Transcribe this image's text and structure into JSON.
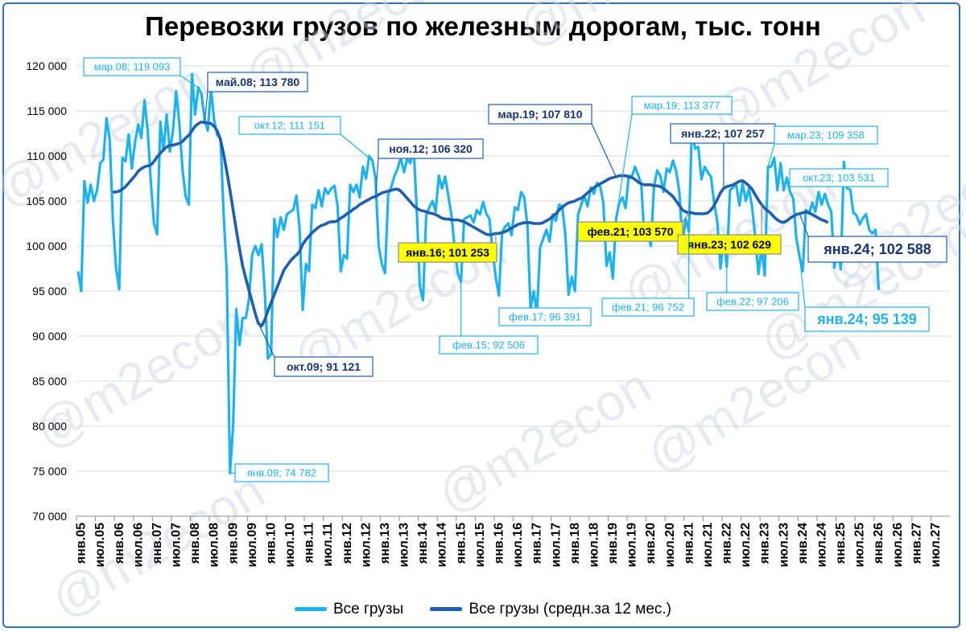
{
  "chart_data": {
    "type": "line",
    "title": "Перевозки грузов по железным дорогам, тыс. тонн",
    "watermark": "@m2econ",
    "colors": {
      "monthly": "#1fb2ec",
      "avg": "#1f5fad",
      "frame": "#2f6fbf",
      "highlight": "#ffff00"
    },
    "ylim": [
      70000,
      120000
    ],
    "yticks": [
      "70 000",
      "75 000",
      "80 000",
      "85 000",
      "90 000",
      "95 000",
      "100 000",
      "105 000",
      "110 000",
      "115 000",
      "120 000"
    ],
    "xticks": [
      "янв.05",
      "июл.05",
      "янв.06",
      "июл.06",
      "янв.07",
      "июл.07",
      "янв.08",
      "июл.08",
      "янв.09",
      "июл.09",
      "янв.10",
      "июл.10",
      "янв.11",
      "июл.11",
      "янв.12",
      "июл.12",
      "янв.13",
      "июл.13",
      "янв.14",
      "июл.14",
      "янв.15",
      "июл.15",
      "янв.16",
      "июл.16",
      "янв.17",
      "июл.17",
      "янв.18",
      "июл.18",
      "янв.19",
      "июл.19",
      "янв.20",
      "июл.20",
      "янв.21",
      "июл.21",
      "янв.22",
      "июл.22",
      "янв.23",
      "июл.23",
      "янв.24",
      "июл.24",
      "янв.25",
      "июл.25",
      "янв.26",
      "июл.26",
      "янв.27",
      "июл.27"
    ],
    "x_start": "янв.05",
    "grid": true,
    "legend_position": "bottom",
    "series": [
      {
        "name": "Все грузы",
        "values": [
          97200,
          95000,
          107200,
          104800,
          106800,
          105000,
          106200,
          109200,
          109600,
          114200,
          111800,
          103000,
          97600,
          95200,
          109800,
          109400,
          112400,
          108600,
          111500,
          113500,
          112000,
          116200,
          112800,
          107100,
          102500,
          101300,
          113800,
          110600,
          114600,
          110500,
          112800,
          117200,
          113600,
          108500,
          105500,
          104600,
          119093,
          114600,
          117600,
          116900,
          114000,
          112800,
          117500,
          114000,
          112300,
          112000,
          103600,
          97000,
          74782,
          80000,
          93000,
          89000,
          92000,
          92000,
          94000,
          99000,
          100000,
          99000,
          100200,
          95000,
          87500,
          88000,
          103000,
          101000,
          103200,
          101800,
          103500,
          103800,
          104000,
          105600,
          102000,
          92900,
          98000,
          97200,
          104600,
          104200,
          106200,
          104400,
          106400,
          105800,
          106400,
          106700,
          104500,
          97200,
          99000,
          98600,
          106800,
          106000,
          106800,
          105400,
          108800,
          107500,
          110000,
          109500,
          107500,
          100000,
          98000,
          97000,
          105700,
          106600,
          107800,
          108600,
          109800,
          108200,
          109700,
          109200,
          111151,
          104300,
          95500,
          94000,
          103400,
          104300,
          105000,
          103800,
          107800,
          106400,
          107700,
          105600,
          103400,
          99800,
          97000,
          96000,
          103000,
          103200,
          103400,
          102600,
          104000,
          103500,
          104900,
          103600,
          103000,
          99500,
          96500,
          94500,
          101500,
          102200,
          102500,
          101200,
          104300,
          104000,
          106000,
          105400,
          102200,
          93000,
          95000,
          92506,
          99800,
          100800,
          101800,
          100500,
          103500,
          102800,
          104600,
          104400,
          101200,
          94600,
          96600,
          95000,
          103500,
          104600,
          105600,
          104400,
          106500,
          105800,
          107000,
          106600,
          104800,
          97800,
          99300,
          96391,
          103000,
          104800,
          105400,
          104200,
          107800,
          107700,
          108800,
          107900,
          106800,
          100600,
          101600,
          100000,
          106600,
          108400,
          107810,
          106000,
          108600,
          108200,
          109500,
          108300,
          106000,
          100400,
          103000,
          101600,
          113377,
          110800,
          111000,
          107400,
          108800,
          108200,
          107700,
          104800,
          102700,
          97500,
          101000,
          97700,
          106200,
          106500,
          106800,
          104500,
          107000,
          105000,
          106400,
          104300,
          101000,
          96900,
          99800,
          96752,
          108800,
          108800,
          109800,
          106200,
          109200,
          106200,
          107600,
          106000,
          105300,
          100800,
          98800,
          97206,
          104000,
          103600,
          104800,
          103800,
          106000,
          104600,
          105800,
          104600,
          103800,
          97600,
          100500,
          97400,
          109358,
          106400,
          106300,
          103700,
          103400,
          102400,
          103100,
          103531,
          101800,
          101400,
          101800,
          95139
        ]
      },
      {
        "name": "Все грузы (средн.за 12 мес.)",
        "start_index": 11,
        "values": [
          106000,
          106000,
          106100,
          106300,
          106600,
          107000,
          107400,
          107800,
          108300,
          108600,
          108800,
          108900,
          109000,
          109400,
          109900,
          110300,
          110700,
          111000,
          111200,
          111200,
          111300,
          111400,
          111600,
          112000,
          112300,
          112800,
          113300,
          113600,
          113780,
          113700,
          113700,
          113600,
          113300,
          112800,
          111800,
          110200,
          108300,
          106200,
          104000,
          101800,
          99700,
          97800,
          96400,
          95100,
          93800,
          92500,
          91400,
          91121,
          91800,
          92800,
          93700,
          94600,
          95500,
          96400,
          97300,
          97800,
          98300,
          98700,
          99000,
          99400,
          100200,
          100700,
          101100,
          101500,
          101800,
          102100,
          102300,
          102400,
          102600,
          102700,
          102700,
          102800,
          103100,
          103300,
          103600,
          103800,
          104100,
          104300,
          104600,
          104800,
          105000,
          105200,
          105400,
          105500,
          105700,
          105900,
          106000,
          106100,
          106200,
          106300,
          106320,
          106100,
          105700,
          105300,
          104900,
          104500,
          104200,
          104000,
          103900,
          103800,
          103700,
          103600,
          103500,
          103300,
          103100,
          103000,
          103000,
          102900,
          102900,
          102900,
          102800,
          102700,
          102500,
          102300,
          102100,
          101900,
          101700,
          101500,
          101300,
          101253,
          101300,
          101400,
          101400,
          101500,
          101600,
          101800,
          102000,
          102200,
          102400,
          102500,
          102600,
          102600,
          102600,
          102500,
          102500,
          102500,
          102600,
          102800,
          103000,
          103300,
          103600,
          104000,
          104300,
          104600,
          104800,
          104900,
          105000,
          105200,
          105300,
          105600,
          105900,
          106200,
          106500,
          106700,
          106900,
          107100,
          107300,
          107500,
          107600,
          107700,
          107800,
          107810,
          107800,
          107700,
          107600,
          107400,
          107100,
          106900,
          106800,
          106800,
          106800,
          106700,
          106700,
          106600,
          106400,
          106100,
          105800,
          105500,
          105000,
          104500,
          104000,
          103800,
          103700,
          103700,
          103600,
          103600,
          103570,
          103600,
          103700,
          104000,
          104500,
          105200,
          105900,
          106400,
          106600,
          106700,
          106800,
          107000,
          107200,
          107257,
          107000,
          106700,
          106300,
          105700,
          105100,
          104600,
          104200,
          103900,
          103600,
          103200,
          102900,
          102700,
          102629,
          102800,
          103100,
          103300,
          103500,
          103600,
          103700,
          103800,
          103700,
          103500,
          103300,
          103100,
          102900,
          102800,
          102588
        ]
      }
    ],
    "annotations": [
      {
        "label": "мар.08; 119 093",
        "series": 0,
        "style": "light"
      },
      {
        "label": "май.08;  113 780",
        "series": 1,
        "style": "dark"
      },
      {
        "label": "окт.12; 111 151",
        "series": 0,
        "style": "light"
      },
      {
        "label": "ноя.12;  106 320",
        "series": 1,
        "style": "dark"
      },
      {
        "label": "мар.19;  107 810",
        "series": 1,
        "style": "dark"
      },
      {
        "label": "мар.19; 113 377",
        "series": 0,
        "style": "light"
      },
      {
        "label": "янв.22;  107 257",
        "series": 1,
        "style": "dark"
      },
      {
        "label": "мар.23; 109 358",
        "series": 0,
        "style": "light"
      },
      {
        "label": "окт.23; 103 531",
        "series": 0,
        "style": "light"
      },
      {
        "label": "фев.21;  103 570",
        "series": 1,
        "style": "yellow"
      },
      {
        "label": "янв.16;  101 253",
        "series": 1,
        "style": "yellow"
      },
      {
        "label": "янв.23;  102 629",
        "series": 1,
        "style": "yellow"
      },
      {
        "label": "янв.24;  102 588",
        "series": 1,
        "style": "final-dark"
      },
      {
        "label": "фев.17; 96 391",
        "series": 0,
        "style": "light"
      },
      {
        "label": "фев.21; 96 752",
        "series": 0,
        "style": "light"
      },
      {
        "label": "фев.22; 97 206",
        "series": 0,
        "style": "light"
      },
      {
        "label": "янв.24; 95 139",
        "series": 0,
        "style": "final-light"
      },
      {
        "label": "фев.15; 92 506",
        "series": 0,
        "style": "light"
      },
      {
        "label": "окт.09;  91 121",
        "series": 1,
        "style": "dark"
      },
      {
        "label": "янв.09; 74 782",
        "series": 0,
        "style": "light"
      }
    ]
  }
}
